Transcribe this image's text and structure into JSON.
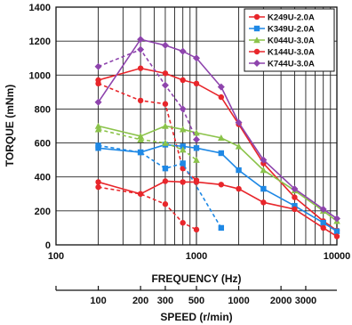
{
  "chart_data": {
    "type": "line",
    "xlabel": "FREQUENCY (Hz)",
    "ylabel": "TORQUE (mNm)",
    "secondary_xlabel": "SPEED (r/min)",
    "x_scale": "log",
    "xlim": [
      100,
      10000
    ],
    "ylim": [
      0,
      1400
    ],
    "x_ticks": [
      100,
      1000,
      10000
    ],
    "x_tick_labels": [
      "100",
      "1000",
      "10000"
    ],
    "y_ticks": [
      0,
      200,
      400,
      600,
      800,
      1000,
      1200,
      1400
    ],
    "y_tick_labels": [
      "0",
      "200",
      "400",
      "600",
      "800",
      "1000",
      "1200",
      "1400"
    ],
    "secondary_x_ticks": [
      100,
      200,
      300,
      500,
      1000,
      2000,
      3000
    ],
    "secondary_x_tick_labels": [
      "100",
      "200",
      "300",
      "500",
      "1000",
      "2000",
      "3000"
    ],
    "grid": true,
    "legend_position": "top-right",
    "series": [
      {
        "name": "K249U-2.0A",
        "color": "#e8262b",
        "marker": "circle",
        "solid": [
          [
            200,
            970
          ],
          [
            400,
            1040
          ],
          [
            600,
            1010
          ],
          [
            800,
            970
          ],
          [
            1000,
            950
          ],
          [
            1500,
            870
          ],
          [
            2000,
            710
          ],
          [
            3000,
            480
          ],
          [
            5000,
            280
          ],
          [
            8000,
            140
          ],
          [
            10000,
            85
          ]
        ],
        "dashed": [
          [
            200,
            950
          ],
          [
            400,
            850
          ],
          [
            600,
            830
          ],
          [
            800,
            450
          ],
          [
            1000,
            380
          ]
        ]
      },
      {
        "name": "K349U-2.0A",
        "color": "#1e88e5",
        "marker": "square",
        "solid": [
          [
            200,
            570
          ],
          [
            400,
            545
          ],
          [
            600,
            590
          ],
          [
            800,
            580
          ],
          [
            1000,
            570
          ],
          [
            1500,
            540
          ],
          [
            2000,
            440
          ],
          [
            3000,
            330
          ],
          [
            5000,
            230
          ],
          [
            8000,
            130
          ],
          [
            10000,
            80
          ]
        ],
        "dashed": [
          [
            200,
            585
          ],
          [
            400,
            545
          ],
          [
            600,
            450
          ],
          [
            800,
            480
          ],
          [
            1500,
            100
          ]
        ]
      },
      {
        "name": "K044U-3.0A",
        "color": "#8bc34a",
        "marker": "triangle",
        "solid": [
          [
            200,
            700
          ],
          [
            400,
            640
          ],
          [
            600,
            700
          ],
          [
            800,
            680
          ],
          [
            1000,
            660
          ],
          [
            1500,
            630
          ],
          [
            2000,
            580
          ],
          [
            3000,
            440
          ],
          [
            5000,
            320
          ],
          [
            8000,
            200
          ],
          [
            10000,
            140
          ]
        ],
        "dashed": [
          [
            200,
            680
          ],
          [
            400,
            620
          ],
          [
            600,
            600
          ],
          [
            800,
            560
          ],
          [
            1000,
            500
          ]
        ]
      },
      {
        "name": "K144U-3.0A",
        "color": "#e8262b",
        "marker": "circle",
        "solid": [
          [
            200,
            370
          ],
          [
            400,
            300
          ],
          [
            600,
            375
          ],
          [
            800,
            370
          ],
          [
            1000,
            370
          ],
          [
            1500,
            355
          ],
          [
            2000,
            330
          ],
          [
            3000,
            250
          ],
          [
            5000,
            210
          ],
          [
            8000,
            100
          ],
          [
            10000,
            50
          ]
        ],
        "dashed": [
          [
            200,
            340
          ],
          [
            400,
            300
          ],
          [
            600,
            240
          ],
          [
            800,
            130
          ],
          [
            1000,
            90
          ]
        ]
      },
      {
        "name": "K744U-3.0A",
        "color": "#8e44ad",
        "marker": "diamond",
        "solid": [
          [
            200,
            840
          ],
          [
            400,
            1210
          ],
          [
            600,
            1175
          ],
          [
            800,
            1140
          ],
          [
            1000,
            1100
          ],
          [
            1500,
            930
          ],
          [
            2000,
            720
          ],
          [
            3000,
            500
          ],
          [
            5000,
            330
          ],
          [
            8000,
            210
          ],
          [
            10000,
            155
          ]
        ],
        "dashed": [
          [
            200,
            1050
          ],
          [
            400,
            1150
          ],
          [
            600,
            940
          ],
          [
            800,
            800
          ],
          [
            1000,
            620
          ]
        ]
      }
    ]
  }
}
